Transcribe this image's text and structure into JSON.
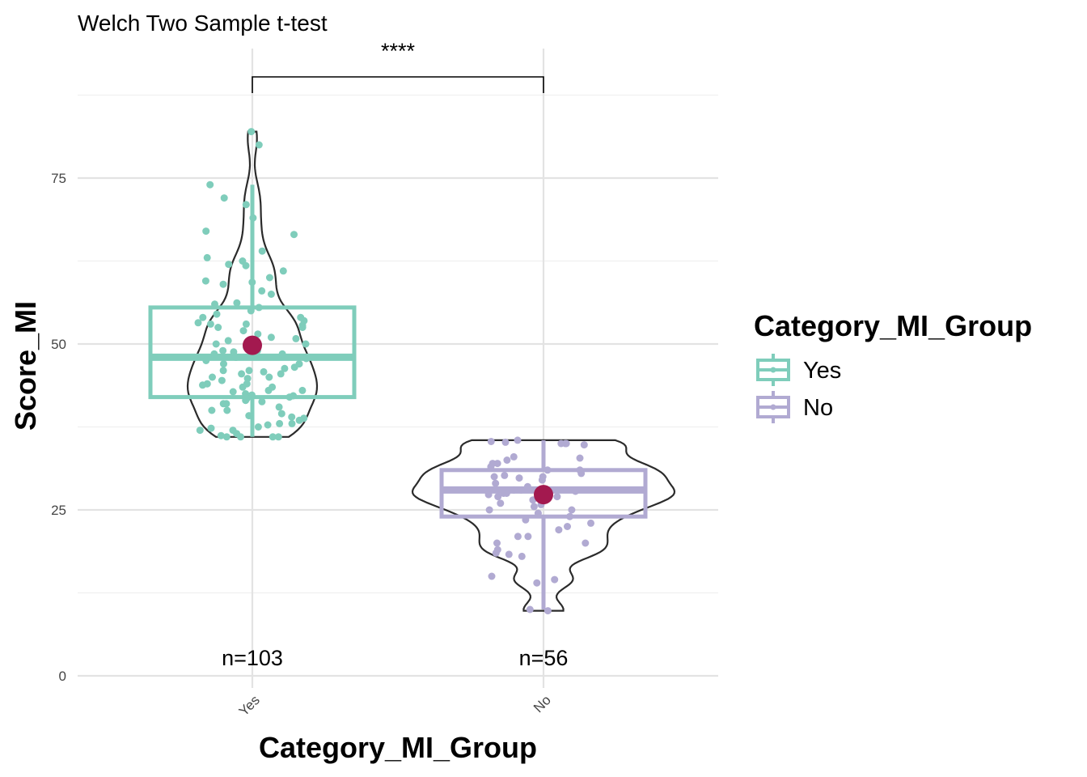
{
  "chart_data": {
    "type": "box",
    "title": "Welch Two Sample t-test",
    "xlabel": "Category_MI_Group",
    "ylabel": "Score_MI",
    "ylim": [
      0,
      92
    ],
    "y_ticks": [
      0,
      25,
      50,
      75
    ],
    "grid": true,
    "categories": [
      "Yes",
      "No"
    ],
    "significance": "****",
    "legend": {
      "title": "Category_MI_Group",
      "position": "right",
      "entries": [
        {
          "label": "Yes",
          "color": "#7fcdbb"
        },
        {
          "label": "No",
          "color": "#b1aad2"
        }
      ]
    },
    "series": [
      {
        "name": "Yes",
        "color": "#7fcdbb",
        "n_label": "n=103",
        "box": {
          "whisker_low": 36,
          "q1": 42,
          "median": 48,
          "q3": 55.5,
          "whisker_high": 74
        },
        "mean": 49.8,
        "points": [
          82,
          80,
          74,
          72,
          71,
          69,
          67,
          66.5,
          64,
          62.5,
          62,
          61,
          60,
          59.5,
          59.3,
          59,
          57.5,
          56,
          55.5,
          55,
          54.5,
          54,
          54,
          53.5,
          53,
          53,
          52.8,
          52.5,
          52,
          51.5,
          51,
          50.5,
          50,
          50,
          49.5,
          49,
          49,
          48.8,
          48.5,
          48.5,
          48,
          48,
          47.5,
          47,
          47,
          46.5,
          46,
          46,
          45.8,
          45.5,
          45.5,
          45,
          45,
          44.5,
          44,
          44,
          43.8,
          43.5,
          43.5,
          43,
          43,
          42.8,
          42.5,
          42.3,
          42,
          42,
          41.8,
          41.5,
          41,
          41,
          40.5,
          40,
          40,
          39.5,
          39,
          38.8,
          38.5,
          38,
          38,
          37.8,
          37.5,
          37,
          37,
          36.5,
          36.2,
          36,
          36,
          36,
          36,
          52.5,
          53.2,
          56.2,
          58,
          61.8,
          63,
          47.8,
          44.8,
          42.2,
          41.3,
          39.2,
          37.3,
          46.3,
          50.8
        ]
      },
      {
        "name": "No",
        "color": "#b1aad2",
        "n_label": "n=56",
        "box": {
          "whisker_low": 10,
          "q1": 24,
          "median": 28,
          "q3": 31,
          "whisker_high": 35.5
        },
        "mean": 27.3,
        "points": [
          35.5,
          35.3,
          35.2,
          35,
          35,
          35,
          34.8,
          33,
          32.8,
          32.5,
          32,
          32,
          31.5,
          31,
          31,
          30.5,
          30.2,
          30,
          30,
          29.8,
          29.5,
          29,
          28.5,
          28,
          28,
          27.8,
          27.5,
          27.5,
          27.3,
          27,
          27,
          26.5,
          26,
          25.8,
          25.5,
          25,
          25,
          24.5,
          24,
          23.5,
          23,
          22.5,
          22,
          21,
          21,
          20,
          20,
          19,
          18.5,
          18.3,
          18,
          15,
          14.5,
          14,
          10,
          9.8
        ]
      }
    ]
  }
}
